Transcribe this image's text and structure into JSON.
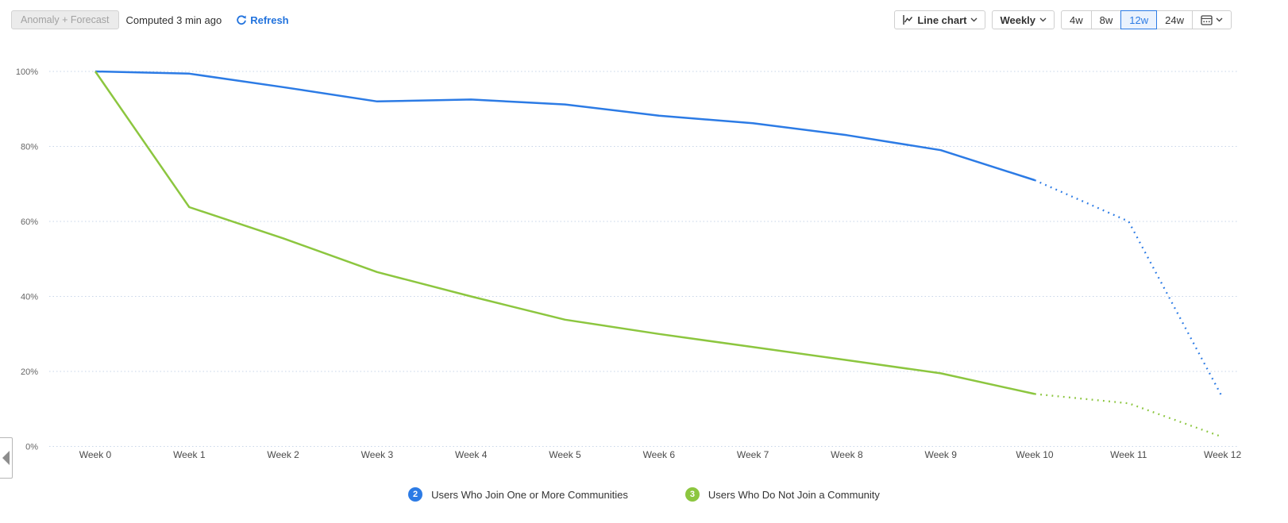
{
  "header": {
    "anomaly_forecast_button": "Anomaly + Forecast",
    "computed_text": "Computed 3 min ago",
    "refresh_label": "Refresh",
    "chart_type_label": "Line chart",
    "interval_label": "Weekly",
    "range_options": [
      {
        "label": "4w",
        "selected": false
      },
      {
        "label": "8w",
        "selected": false
      },
      {
        "label": "12w",
        "selected": true
      },
      {
        "label": "24w",
        "selected": false
      }
    ]
  },
  "colors": {
    "accent_blue": "#2c7be5",
    "series_blue": "#2c7be5",
    "series_green": "#8cc63f",
    "gridline": "#c7d5e8",
    "selected_range_bg": "#eaf2fd"
  },
  "chart_data": {
    "type": "line",
    "title": "",
    "xlabel": "",
    "ylabel": "",
    "x": [
      "Week 0",
      "Week 1",
      "Week 2",
      "Week 3",
      "Week 4",
      "Week 5",
      "Week 6",
      "Week 7",
      "Week 8",
      "Week 9",
      "Week 10",
      "Week 11",
      "Week 12"
    ],
    "y_ticks": [
      0,
      20,
      40,
      60,
      80,
      100
    ],
    "y_tick_labels": [
      "0%",
      "20%",
      "40%",
      "60%",
      "80%",
      "100%"
    ],
    "ylim": [
      0,
      100
    ],
    "grid": true,
    "legend_position": "bottom",
    "forecast_start_index": 10,
    "series": [
      {
        "name": "Users Who Join One or More Communities",
        "badge": "2",
        "color": "#2c7be5",
        "values": [
          100,
          99.4,
          95.8,
          92,
          92.5,
          91.2,
          88.2,
          86.2,
          83,
          79,
          71,
          60,
          13
        ]
      },
      {
        "name": "Users Who Do Not Join a Community",
        "badge": "3",
        "color": "#8cc63f",
        "values": [
          100,
          63.8,
          55.5,
          46.5,
          40,
          33.8,
          30,
          26.5,
          23,
          19.5,
          14,
          11.5,
          2.5
        ]
      }
    ]
  }
}
